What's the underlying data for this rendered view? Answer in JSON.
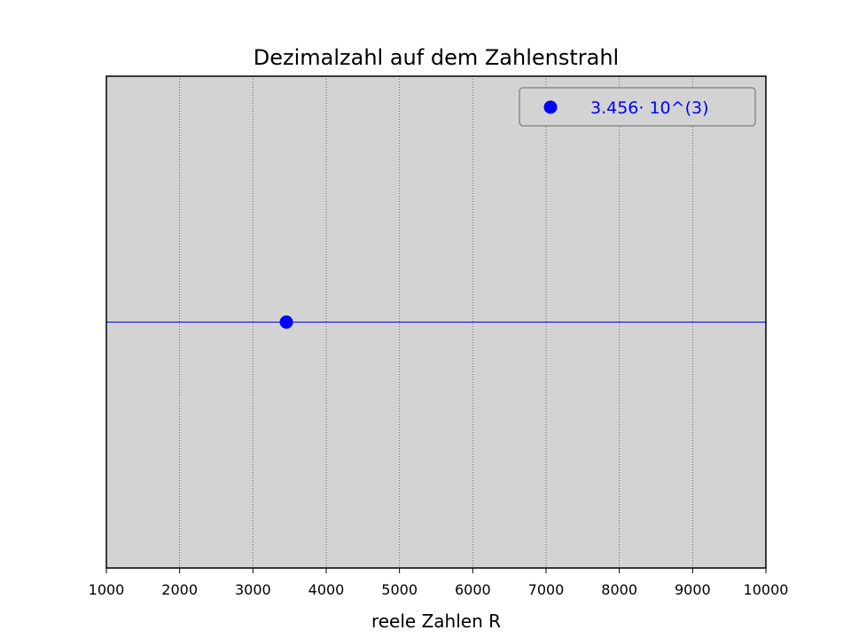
{
  "colors": {
    "plot_background": "#d3d3d3",
    "point": "#0000ff",
    "number_line": "#0000ff",
    "grid": "#555555",
    "axis": "#000000",
    "legend_border": "#8a8a8a",
    "legend_text": "#0000ff"
  },
  "chart_data": {
    "type": "scatter",
    "title": "Dezimalzahl auf dem Zahlenstrahl",
    "xlabel": "reele Zahlen R",
    "ylabel": "",
    "xlim": [
      1000,
      10000
    ],
    "xticks": [
      1000,
      2000,
      3000,
      4000,
      5000,
      6000,
      7000,
      8000,
      9000,
      10000
    ],
    "x_tick_labels": [
      "1000",
      "2000",
      "3000",
      "4000",
      "5000",
      "6000",
      "7000",
      "8000",
      "9000",
      "10000"
    ],
    "y_axis_visible": false,
    "grid": "vertical dotted",
    "legend_placement": "top-right",
    "number_line": {
      "y": 0
    },
    "series": [
      {
        "name": "3.456· 10^(3)",
        "x": [
          3456
        ],
        "y": [
          0
        ]
      }
    ]
  }
}
